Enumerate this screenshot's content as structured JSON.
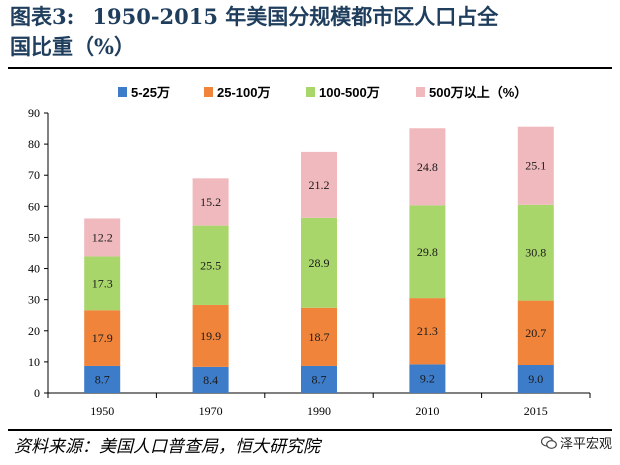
{
  "header": {
    "prefix": "图表3:",
    "title_line1": "1950-2015 年美国分规模都市区人口占全",
    "title_line2": "国比重（%）"
  },
  "footer": {
    "source": "资料来源：美国人口普查局，恒大研究院",
    "watermark": "泽平宏观"
  },
  "chart_data": {
    "type": "bar",
    "stacked": true,
    "categories": [
      "1950",
      "1970",
      "1990",
      "2010",
      "2015"
    ],
    "series": [
      {
        "name": "5-25万",
        "color": "#3d7cc9",
        "values": [
          8.7,
          8.4,
          8.7,
          9.2,
          9.0
        ]
      },
      {
        "name": "25-100万",
        "color": "#f0843a",
        "values": [
          17.9,
          19.9,
          18.7,
          21.3,
          20.7
        ]
      },
      {
        "name": "100-500万",
        "color": "#a9d66b",
        "values": [
          17.3,
          25.5,
          28.9,
          29.8,
          30.8
        ]
      },
      {
        "name": "500万以上（%）",
        "color": "#f0b9bd",
        "values": [
          12.2,
          15.2,
          21.2,
          24.8,
          25.1
        ]
      }
    ],
    "yticks": [
      "0",
      "10",
      "20",
      "30",
      "40",
      "50",
      "60",
      "70",
      "80",
      "90"
    ],
    "ylim": [
      0,
      90
    ],
    "legend_position": "top",
    "grid": false
  }
}
